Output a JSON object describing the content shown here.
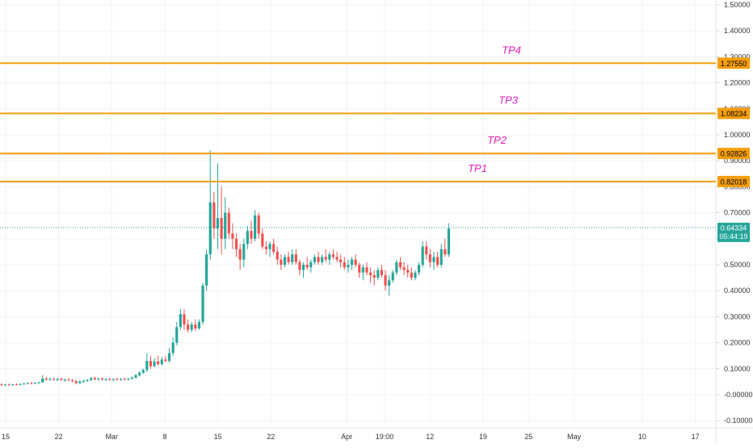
{
  "chart_data": {
    "type": "candlestick",
    "y_ticks": [
      "1.50000",
      "1.40000",
      "1.30000",
      "1.20000",
      "1.10000",
      "1.00000",
      "0.90000",
      "0.80000",
      "0.70000",
      "0.60000",
      "0.50000",
      "0.40000",
      "0.30000",
      "0.20000",
      "0.10000",
      "-0.00000",
      "-0.10000"
    ],
    "y_tick_values": [
      1.5,
      1.4,
      1.3,
      1.2,
      1.1,
      1.0,
      0.9,
      0.8,
      0.7,
      0.6,
      0.5,
      0.4,
      0.3,
      0.2,
      0.1,
      0.0,
      -0.1
    ],
    "ylim": [
      -0.1,
      1.5
    ],
    "x_ticks": [
      "15",
      "22",
      "Mar",
      "8",
      "15",
      "22",
      "Apr",
      "19:00",
      "12",
      "19",
      "25",
      "May",
      "10",
      "17"
    ],
    "x_tick_dates": [
      "2021-02-15",
      "2021-02-22",
      "2021-03-01",
      "2021-03-08",
      "2021-03-15",
      "2021-03-22",
      "2021-04-01",
      "2021-04-06",
      "2021-04-12",
      "2021-04-19",
      "2021-04-25",
      "2021-05-01",
      "2021-05-10",
      "2021-05-17"
    ],
    "grid": true,
    "levels": [
      {
        "label": "TP4",
        "value": "1.27550",
        "y": 1.2755
      },
      {
        "label": "TP3",
        "value": "1.08234",
        "y": 1.08234
      },
      {
        "label": "TP2",
        "value": "0.92826",
        "y": 0.92826
      },
      {
        "label": "TP1",
        "value": "0.82018",
        "y": 0.82018
      }
    ],
    "current_price": {
      "value": "0.64334",
      "y": 0.64334,
      "countdown": "05:44:19"
    },
    "candles": [
      [
        0.04,
        0.045,
        0.035,
        0.038
      ],
      [
        0.038,
        0.042,
        0.034,
        0.039
      ],
      [
        0.039,
        0.043,
        0.035,
        0.037
      ],
      [
        0.037,
        0.041,
        0.034,
        0.04
      ],
      [
        0.04,
        0.044,
        0.036,
        0.039
      ],
      [
        0.039,
        0.044,
        0.036,
        0.041
      ],
      [
        0.041,
        0.046,
        0.038,
        0.043
      ],
      [
        0.043,
        0.048,
        0.04,
        0.045
      ],
      [
        0.045,
        0.049,
        0.041,
        0.044
      ],
      [
        0.044,
        0.047,
        0.04,
        0.046
      ],
      [
        0.046,
        0.05,
        0.042,
        0.048
      ],
      [
        0.048,
        0.075,
        0.046,
        0.062
      ],
      [
        0.062,
        0.068,
        0.055,
        0.058
      ],
      [
        0.058,
        0.066,
        0.054,
        0.06
      ],
      [
        0.06,
        0.067,
        0.055,
        0.057
      ],
      [
        0.057,
        0.064,
        0.052,
        0.061
      ],
      [
        0.061,
        0.066,
        0.055,
        0.056
      ],
      [
        0.056,
        0.062,
        0.05,
        0.058
      ],
      [
        0.058,
        0.064,
        0.052,
        0.055
      ],
      [
        0.055,
        0.061,
        0.048,
        0.052
      ],
      [
        0.052,
        0.058,
        0.04,
        0.045
      ],
      [
        0.045,
        0.055,
        0.04,
        0.051
      ],
      [
        0.051,
        0.058,
        0.046,
        0.053
      ],
      [
        0.053,
        0.06,
        0.049,
        0.057
      ],
      [
        0.057,
        0.068,
        0.052,
        0.064
      ],
      [
        0.064,
        0.07,
        0.056,
        0.059
      ],
      [
        0.059,
        0.066,
        0.053,
        0.062
      ],
      [
        0.062,
        0.067,
        0.055,
        0.058
      ],
      [
        0.058,
        0.064,
        0.053,
        0.06
      ],
      [
        0.06,
        0.066,
        0.054,
        0.057
      ],
      [
        0.057,
        0.063,
        0.052,
        0.06
      ],
      [
        0.06,
        0.066,
        0.055,
        0.058
      ],
      [
        0.058,
        0.064,
        0.053,
        0.061
      ],
      [
        0.061,
        0.067,
        0.055,
        0.059
      ],
      [
        0.059,
        0.065,
        0.054,
        0.062
      ],
      [
        0.062,
        0.07,
        0.058,
        0.066
      ],
      [
        0.066,
        0.08,
        0.062,
        0.075
      ],
      [
        0.075,
        0.09,
        0.07,
        0.085
      ],
      [
        0.085,
        0.1,
        0.08,
        0.095
      ],
      [
        0.095,
        0.16,
        0.088,
        0.13
      ],
      [
        0.13,
        0.15,
        0.1,
        0.11
      ],
      [
        0.11,
        0.14,
        0.105,
        0.128
      ],
      [
        0.128,
        0.15,
        0.112,
        0.118
      ],
      [
        0.118,
        0.145,
        0.112,
        0.135
      ],
      [
        0.135,
        0.15,
        0.125,
        0.13
      ],
      [
        0.13,
        0.18,
        0.125,
        0.16
      ],
      [
        0.16,
        0.22,
        0.15,
        0.2
      ],
      [
        0.2,
        0.28,
        0.19,
        0.26
      ],
      [
        0.26,
        0.33,
        0.25,
        0.31
      ],
      [
        0.31,
        0.33,
        0.25,
        0.27
      ],
      [
        0.27,
        0.29,
        0.24,
        0.25
      ],
      [
        0.25,
        0.28,
        0.24,
        0.27
      ],
      [
        0.27,
        0.29,
        0.245,
        0.255
      ],
      [
        0.255,
        0.29,
        0.25,
        0.28
      ],
      [
        0.28,
        0.43,
        0.27,
        0.42
      ],
      [
        0.42,
        0.56,
        0.4,
        0.54
      ],
      [
        0.54,
        0.94,
        0.52,
        0.74
      ],
      [
        0.74,
        0.78,
        0.6,
        0.64
      ],
      [
        0.64,
        0.89,
        0.56,
        0.68
      ],
      [
        0.68,
        0.8,
        0.54,
        0.6
      ],
      [
        0.6,
        0.76,
        0.56,
        0.7
      ],
      [
        0.7,
        0.72,
        0.6,
        0.62
      ],
      [
        0.62,
        0.66,
        0.56,
        0.6
      ],
      [
        0.6,
        0.62,
        0.53,
        0.56
      ],
      [
        0.56,
        0.58,
        0.48,
        0.52
      ],
      [
        0.52,
        0.6,
        0.49,
        0.58
      ],
      [
        0.58,
        0.65,
        0.56,
        0.63
      ],
      [
        0.63,
        0.67,
        0.58,
        0.6
      ],
      [
        0.6,
        0.71,
        0.59,
        0.69
      ],
      [
        0.69,
        0.7,
        0.6,
        0.62
      ],
      [
        0.62,
        0.64,
        0.56,
        0.57
      ],
      [
        0.57,
        0.59,
        0.54,
        0.56
      ],
      [
        0.56,
        0.59,
        0.53,
        0.58
      ],
      [
        0.58,
        0.6,
        0.54,
        0.55
      ],
      [
        0.55,
        0.57,
        0.5,
        0.52
      ],
      [
        0.52,
        0.54,
        0.48,
        0.5
      ],
      [
        0.5,
        0.54,
        0.49,
        0.53
      ],
      [
        0.53,
        0.55,
        0.5,
        0.51
      ],
      [
        0.51,
        0.56,
        0.5,
        0.54
      ],
      [
        0.54,
        0.56,
        0.5,
        0.51
      ],
      [
        0.51,
        0.52,
        0.46,
        0.48
      ],
      [
        0.48,
        0.51,
        0.45,
        0.5
      ],
      [
        0.5,
        0.53,
        0.48,
        0.49
      ],
      [
        0.49,
        0.52,
        0.47,
        0.51
      ],
      [
        0.51,
        0.54,
        0.5,
        0.53
      ],
      [
        0.53,
        0.55,
        0.5,
        0.51
      ],
      [
        0.51,
        0.54,
        0.5,
        0.53
      ],
      [
        0.53,
        0.56,
        0.51,
        0.52
      ],
      [
        0.52,
        0.55,
        0.5,
        0.54
      ],
      [
        0.54,
        0.56,
        0.52,
        0.53
      ],
      [
        0.53,
        0.55,
        0.51,
        0.52
      ],
      [
        0.52,
        0.54,
        0.49,
        0.51
      ],
      [
        0.51,
        0.53,
        0.48,
        0.49
      ],
      [
        0.49,
        0.52,
        0.47,
        0.5
      ],
      [
        0.5,
        0.53,
        0.48,
        0.52
      ],
      [
        0.52,
        0.54,
        0.49,
        0.5
      ],
      [
        0.5,
        0.51,
        0.45,
        0.47
      ],
      [
        0.47,
        0.5,
        0.44,
        0.49
      ],
      [
        0.49,
        0.51,
        0.46,
        0.47
      ],
      [
        0.47,
        0.49,
        0.43,
        0.46
      ],
      [
        0.46,
        0.48,
        0.42,
        0.45
      ],
      [
        0.45,
        0.49,
        0.44,
        0.48
      ],
      [
        0.48,
        0.5,
        0.45,
        0.46
      ],
      [
        0.46,
        0.48,
        0.4,
        0.42
      ],
      [
        0.42,
        0.46,
        0.38,
        0.44
      ],
      [
        0.44,
        0.48,
        0.43,
        0.47
      ],
      [
        0.47,
        0.52,
        0.46,
        0.51
      ],
      [
        0.51,
        0.53,
        0.48,
        0.49
      ],
      [
        0.49,
        0.51,
        0.46,
        0.48
      ],
      [
        0.48,
        0.5,
        0.45,
        0.47
      ],
      [
        0.47,
        0.49,
        0.44,
        0.45
      ],
      [
        0.45,
        0.48,
        0.44,
        0.47
      ],
      [
        0.47,
        0.51,
        0.46,
        0.5
      ],
      [
        0.5,
        0.59,
        0.49,
        0.57
      ],
      [
        0.57,
        0.59,
        0.52,
        0.54
      ],
      [
        0.54,
        0.56,
        0.49,
        0.51
      ],
      [
        0.51,
        0.55,
        0.48,
        0.53
      ],
      [
        0.53,
        0.55,
        0.49,
        0.5
      ],
      [
        0.5,
        0.58,
        0.49,
        0.56
      ],
      [
        0.56,
        0.6,
        0.53,
        0.54
      ],
      [
        0.54,
        0.66,
        0.53,
        0.64
      ]
    ]
  },
  "colors": {
    "up": "#26a69a",
    "down": "#ef5350",
    "level_line": "#f59d0c",
    "level_badge": "#f59d0c",
    "tp_label": "#e020b8",
    "price_badge": "#26a69a",
    "grid": "#f0f3fa",
    "axis_text": "#333333"
  }
}
